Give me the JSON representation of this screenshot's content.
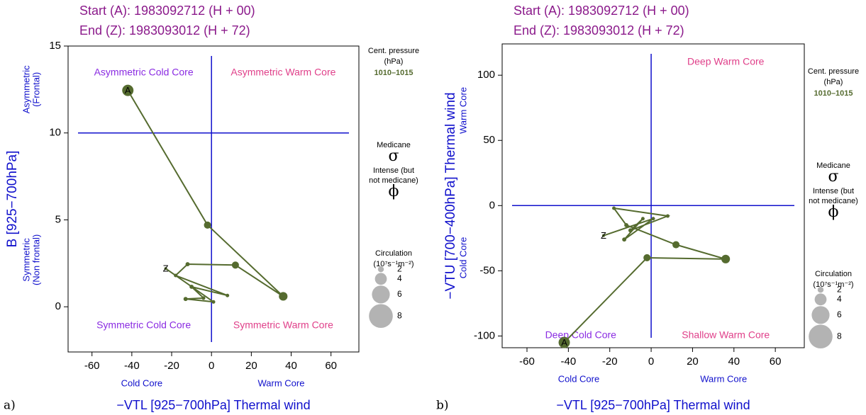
{
  "chart_data": [
    {
      "type": "scatter",
      "panel_label": "a)",
      "title_lines": [
        "Start (A): 1983092712 (H + 00)",
        "End (Z):  1983093012 (H + 72)"
      ],
      "x_label": "−VTL [925−700hPa] Thermal wind",
      "x_sublabels": [
        "Cold Core",
        "Warm Core"
      ],
      "y_label": "B [925−700hPa]",
      "y_sublabel_top": [
        "Asymmetric",
        "(Frontal)"
      ],
      "y_sublabel_bottom": [
        "Symmetric",
        "(Non frontal)"
      ],
      "quadrant_labels": {
        "top_left": "Asymmetric Cold Core",
        "top_right": "Asymmetric Warm Core",
        "bottom_left": "Symmetric Cold Core",
        "bottom_right": "Symmetric Warm Core"
      },
      "reference_lines": {
        "x": 0,
        "y": 10
      },
      "xlim": [
        -72,
        74
      ],
      "xticks": [
        -60,
        -40,
        -20,
        0,
        20,
        40,
        60
      ],
      "ylim": [
        -2.6,
        15
      ],
      "yticks": [
        0,
        5,
        10,
        15
      ],
      "legend_title": [
        "Cent. pressure",
        "(hPa)"
      ],
      "marker_legend": [
        {
          "label": [
            "Medicane"
          ],
          "symbol": "σ"
        },
        {
          "label": [
            "Intense (but",
            "not medicane)"
          ],
          "symbol": "ϕ"
        }
      ],
      "size_legend": {
        "title": [
          "Circulation",
          "(10⁷s⁻¹m⁻²)"
        ],
        "values": [
          2,
          4,
          6,
          8
        ]
      },
      "series": [
        {
          "name": "1010–1015",
          "color": "#556b2f",
          "x": [
            -42,
            -2,
            36,
            12,
            -12,
            -18,
            8,
            -10,
            -4,
            -13,
            1,
            -23
          ],
          "values": [
            12.45,
            4.7,
            0.6,
            2.4,
            2.45,
            1.8,
            0.65,
            1.15,
            0.5,
            0.45,
            0.28,
            2.2
          ],
          "sizes": [
            3.8,
            2.4,
            2.9,
            2.4,
            1.4,
            1.2,
            1.2,
            1.4,
            1.2,
            1.4,
            1.2,
            1.0
          ],
          "point_labels": [
            "A",
            null,
            null,
            null,
            null,
            null,
            null,
            null,
            null,
            null,
            null,
            "Z"
          ]
        }
      ]
    },
    {
      "type": "scatter",
      "panel_label": "b)",
      "title_lines": [
        "Start (A): 1983092712 (H + 00)",
        "End (Z):  1983093012 (H + 72)"
      ],
      "x_label": "−VTL [925−700hPa] Thermal wind",
      "x_sublabels": [
        "Cold Core",
        "Warm Core"
      ],
      "y_label": "−VTU [700−400hPa] Thermal wind",
      "y_sublabel_top": [
        "Warm Core"
      ],
      "y_sublabel_bottom": [
        "Cold Core"
      ],
      "quadrant_labels": {
        "top_right": "Deep Warm Core",
        "bottom_left": "Deep Cold Core",
        "bottom_right": "Shallow Warm Core"
      },
      "reference_lines": {
        "x": 0,
        "y": 0
      },
      "xlim": [
        -72,
        74
      ],
      "xticks": [
        -60,
        -40,
        -20,
        0,
        20,
        40,
        60
      ],
      "ylim": [
        -109,
        124
      ],
      "yticks": [
        -100,
        -50,
        0,
        50,
        100
      ],
      "legend_title": [
        "Cent. pressure",
        "(hPa)"
      ],
      "marker_legend": [
        {
          "label": [
            "Medicane"
          ],
          "symbol": "σ"
        },
        {
          "label": [
            "Intense (but",
            "not medicane)"
          ],
          "symbol": "ϕ"
        }
      ],
      "size_legend": {
        "title": [
          "Circulation",
          "(10⁷s⁻¹m⁻²)"
        ],
        "values": [
          2,
          4,
          6,
          8
        ]
      },
      "series": [
        {
          "name": "1010–1015",
          "color": "#556b2f",
          "x": [
            -42,
            -2,
            36,
            12,
            -12,
            -18,
            8,
            -10,
            -4,
            -13,
            1,
            -23
          ],
          "values": [
            -105,
            -40,
            -41,
            -30,
            -15,
            -2,
            -8,
            -19,
            -10,
            -26,
            -10,
            -23
          ],
          "sizes": [
            3.8,
            2.4,
            2.9,
            2.4,
            1.4,
            1.2,
            1.2,
            1.4,
            1.2,
            1.4,
            1.2,
            1.0
          ],
          "point_labels": [
            "A",
            null,
            null,
            null,
            null,
            null,
            null,
            null,
            null,
            null,
            null,
            "Z"
          ]
        }
      ]
    }
  ]
}
